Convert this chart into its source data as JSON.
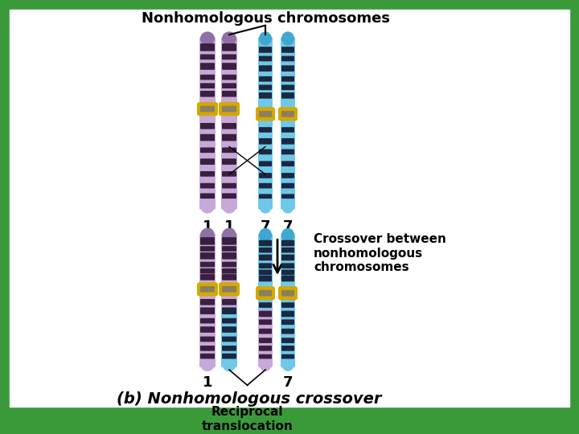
{
  "background_color": "#3a9a3a",
  "inner_bg": "#ffffff",
  "title": "Nonhomologous chromosomes",
  "title_fontsize": 13,
  "title_fontweight": "bold",
  "crossover_label": "Crossover between\nnonhomologous\nchromosomes",
  "reciprocal_label": "Reciprocal\ntranslocation",
  "bottom_label": "(b) Nonhomologous crossover",
  "chr1_light": "#c8a8d8",
  "chr1_dark_band": "#3a2040",
  "chr1_cap": "#9070a8",
  "chr1_lower": "#d8c8e8",
  "chr7_light": "#70c8e8",
  "chr7_dark_band": "#1a2840",
  "chr7_cap": "#40a8d0",
  "chr7_lower": "#a0d8f0",
  "centromere_color": "#d4a800",
  "centromere_dark": "#888060"
}
